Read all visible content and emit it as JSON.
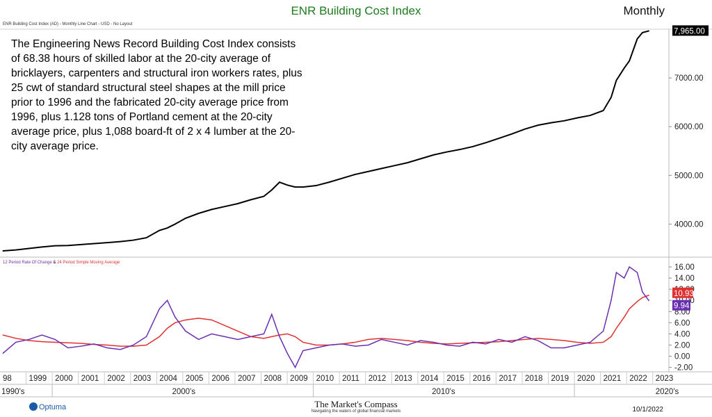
{
  "header": {
    "title": "ENR Building Cost Index",
    "frequency": "Monthly",
    "subtitle": "ENR Building Cost Index (AD) - Monthly Line Chart - USD - No Layout"
  },
  "description": "The Engineering News Record Building Cost Index consists of 68.38 hours of skilled labor at the 20-city average of bricklayers, carpenters and structural iron workers rates, plus 25 cwt of standard structural steel shapes at the mill price prior to 1996 and the fabricated 20-city average price from 1996, plus 1.128 tons of Portland cement at the 20-city average price, plus 1,088 board-ft of 2 x 4 lumber at the 20-city average price.",
  "indicator_label": {
    "part1": "12 Period Rate Of Change",
    "sep": " & ",
    "part2": "24 Period Simple Moving Average"
  },
  "footer": {
    "logo": "Optuma",
    "brand": "The Market's Compass",
    "tagline": "Navigating the waters of global financial markets",
    "date": "10/1/2022"
  },
  "colors": {
    "price": "#000000",
    "roc": "#6a2fb0",
    "sma": "#e03030",
    "title": "#1e7b1e",
    "grid": "#e6e6e6"
  },
  "chart_data": [
    {
      "type": "line",
      "name": "price-panel",
      "x": [
        1998.0,
        1998.5,
        1999.0,
        1999.5,
        2000.0,
        2000.5,
        2001.0,
        2001.5,
        2002.0,
        2002.5,
        2003.0,
        2003.5,
        2004.0,
        2004.3,
        2004.6,
        2005.0,
        2005.5,
        2006.0,
        2006.5,
        2007.0,
        2007.5,
        2008.0,
        2008.3,
        2008.6,
        2008.9,
        2009.2,
        2009.5,
        2010.0,
        2010.5,
        2011.0,
        2011.5,
        2012.0,
        2012.5,
        2013.0,
        2013.5,
        2014.0,
        2014.5,
        2015.0,
        2015.5,
        2016.0,
        2016.5,
        2017.0,
        2017.5,
        2018.0,
        2018.5,
        2019.0,
        2019.5,
        2020.0,
        2020.5,
        2021.0,
        2021.3,
        2021.5,
        2021.8,
        2022.0,
        2022.3,
        2022.5,
        2022.75
      ],
      "series": [
        {
          "values": [
            3450,
            3470,
            3500,
            3530,
            3555,
            3560,
            3580,
            3600,
            3620,
            3640,
            3670,
            3720,
            3870,
            3920,
            4000,
            4120,
            4220,
            4300,
            4360,
            4420,
            4500,
            4570,
            4700,
            4860,
            4800,
            4760,
            4760,
            4790,
            4860,
            4940,
            5020,
            5080,
            5140,
            5200,
            5260,
            5340,
            5420,
            5480,
            5530,
            5590,
            5670,
            5760,
            5850,
            5950,
            6030,
            6080,
            6120,
            6180,
            6230,
            6330,
            6600,
            6950,
            7200,
            7350,
            7800,
            7930,
            7965
          ]
        }
      ],
      "y_tick_labels": [
        "4000.00",
        "5000.00",
        "6000.00",
        "7000.00"
      ],
      "ylim": [
        3350,
        8000
      ],
      "last_value_label": "7,965.00"
    },
    {
      "type": "line",
      "name": "indicator-panel",
      "x": [
        1998.0,
        1998.5,
        1999.0,
        1999.5,
        2000.0,
        2000.5,
        2001.0,
        2001.5,
        2002.0,
        2002.5,
        2003.0,
        2003.5,
        2004.0,
        2004.3,
        2004.6,
        2005.0,
        2005.5,
        2006.0,
        2006.5,
        2007.0,
        2007.5,
        2008.0,
        2008.3,
        2008.6,
        2008.9,
        2009.2,
        2009.5,
        2010.0,
        2010.5,
        2011.0,
        2011.5,
        2012.0,
        2012.5,
        2013.0,
        2013.5,
        2014.0,
        2014.5,
        2015.0,
        2015.5,
        2016.0,
        2016.5,
        2017.0,
        2017.5,
        2018.0,
        2018.5,
        2019.0,
        2019.5,
        2020.0,
        2020.5,
        2021.0,
        2021.3,
        2021.5,
        2021.8,
        2022.0,
        2022.3,
        2022.5,
        2022.75
      ],
      "series": [
        {
          "name": "12 Period Rate Of Change",
          "values": [
            0.5,
            2.5,
            3.0,
            3.8,
            3.0,
            1.5,
            1.8,
            2.2,
            1.5,
            1.2,
            2.0,
            3.5,
            8.5,
            10.0,
            7.0,
            4.5,
            3.0,
            4.0,
            3.5,
            3.0,
            3.5,
            4.0,
            7.5,
            3.5,
            0.5,
            -2.0,
            1.0,
            1.5,
            2.0,
            2.2,
            1.8,
            2.0,
            3.0,
            2.5,
            2.0,
            2.8,
            2.5,
            2.0,
            1.8,
            2.5,
            2.2,
            3.0,
            2.5,
            3.5,
            2.8,
            1.5,
            1.5,
            2.0,
            2.5,
            4.5,
            10.0,
            15.0,
            14.0,
            16.0,
            15.0,
            11.5,
            9.94
          ]
        },
        {
          "name": "24 Period Simple Moving Average",
          "values": [
            3.8,
            3.2,
            2.8,
            2.6,
            2.5,
            2.4,
            2.3,
            2.1,
            2.0,
            1.8,
            1.8,
            2.0,
            3.5,
            5.0,
            6.0,
            6.5,
            6.8,
            6.5,
            5.5,
            4.5,
            3.5,
            3.2,
            3.5,
            3.8,
            4.0,
            3.5,
            2.5,
            2.0,
            2.0,
            2.2,
            2.5,
            3.0,
            3.2,
            3.0,
            2.8,
            2.5,
            2.3,
            2.2,
            2.3,
            2.4,
            2.5,
            2.6,
            2.8,
            3.0,
            3.2,
            3.0,
            2.8,
            2.5,
            2.3,
            2.5,
            3.5,
            5.0,
            7.0,
            8.5,
            9.8,
            10.5,
            10.93
          ]
        }
      ],
      "y_tick_labels": [
        "-2.00",
        "0.00",
        "2.00",
        "4.00",
        "6.00",
        "8.00",
        "10.00",
        "12.00",
        "14.00",
        "16.00"
      ],
      "ylim": [
        -2.8,
        17.5
      ],
      "last_value_labels": {
        "sma": "10.93",
        "roc": "9.94"
      }
    }
  ],
  "x_axis": {
    "year_labels": [
      "98",
      "1999",
      "2000",
      "2001",
      "2002",
      "2003",
      "2004",
      "2005",
      "2006",
      "2007",
      "2008",
      "2009",
      "2010",
      "2011",
      "2012",
      "2013",
      "2014",
      "2015",
      "2016",
      "2017",
      "2018",
      "2019",
      "2020",
      "2021",
      "2022",
      "2023"
    ],
    "year_values": [
      1998,
      1999,
      2000,
      2001,
      2002,
      2003,
      2004,
      2005,
      2006,
      2007,
      2008,
      2009,
      2010,
      2011,
      2012,
      2013,
      2014,
      2015,
      2016,
      2017,
      2018,
      2019,
      2020,
      2021,
      2022,
      2023
    ],
    "decade_labels": [
      "1990's",
      "2000's",
      "2010's",
      "2020's"
    ]
  }
}
